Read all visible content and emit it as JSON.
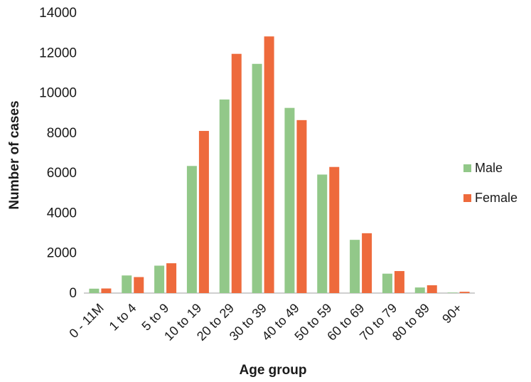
{
  "chart_data": {
    "type": "bar",
    "categories": [
      "0 - 11M",
      "1 to 4",
      "5 to 9",
      "10 to 19",
      "20 to 29",
      "30 to 39",
      "40 to 49",
      "50 to 59",
      "60 to 69",
      "70 to 79",
      "80 to 89",
      "90+"
    ],
    "series": [
      {
        "name": "Male",
        "color": "#92c889",
        "values": [
          220,
          880,
          1370,
          6350,
          9670,
          11450,
          9250,
          5920,
          2660,
          970,
          280,
          25
        ]
      },
      {
        "name": "Female",
        "color": "#ee6a3c",
        "values": [
          230,
          800,
          1490,
          8100,
          11950,
          12820,
          8640,
          6300,
          2990,
          1100,
          390,
          65
        ]
      }
    ],
    "title": "",
    "xlabel": "Age group",
    "ylabel": "Number of cases",
    "ylim": [
      0,
      14000
    ],
    "yticks": [
      "0",
      "2000",
      "4000",
      "6000",
      "8000",
      "10000",
      "12000",
      "14000"
    ],
    "grid": false,
    "legend_position": "right"
  }
}
